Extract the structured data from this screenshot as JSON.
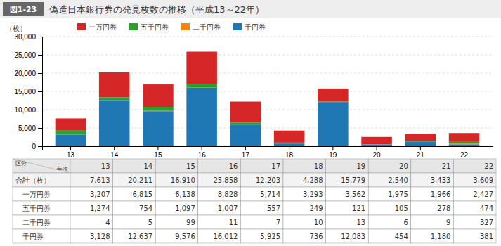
{
  "chart_data": {
    "type": "bar",
    "stacked": true,
    "title": "偽造日本銀行券の発見枚数の推移（平成13～22年）",
    "annotations": [
      "図1-23"
    ],
    "y_label": "（枚）",
    "categories": [
      "13",
      "14",
      "15",
      "16",
      "17",
      "18",
      "19",
      "20",
      "21",
      "22"
    ],
    "series": [
      {
        "name": "千円券",
        "values": [
          3128,
          12637,
          9576,
          16012,
          5925,
          736,
          12083,
          454,
          1180,
          381
        ],
        "value_labels": [
          "3,128",
          "12,637",
          "9,576",
          "16,012",
          "5,925",
          "736",
          "12,083",
          "454",
          "1,180",
          "381"
        ]
      },
      {
        "name": "二千円券",
        "values": [
          4,
          5,
          99,
          11,
          7,
          10,
          13,
          6,
          9,
          327
        ],
        "value_labels": [
          "4",
          "5",
          "99",
          "11",
          "7",
          "10",
          "13",
          "6",
          "9",
          "327"
        ]
      },
      {
        "name": "五千円券",
        "values": [
          1274,
          754,
          1097,
          1007,
          557,
          249,
          121,
          105,
          278,
          474
        ],
        "value_labels": [
          "1,274",
          "754",
          "1,097",
          "1,007",
          "557",
          "249",
          "121",
          "105",
          "278",
          "474"
        ]
      },
      {
        "name": "一万円券",
        "values": [
          3207,
          6815,
          6138,
          8828,
          5714,
          3293,
          3562,
          1975,
          1966,
          2427
        ],
        "value_labels": [
          "3,207",
          "6,815",
          "6,138",
          "8,828",
          "5,714",
          "3,293",
          "3,562",
          "1,975",
          "1,966",
          "2,427"
        ]
      }
    ],
    "ylim": [
      0,
      30000
    ],
    "yticks": [
      0,
      {
        "value": 5000,
        "label": "5,000"
      },
      {
        "value": 10000,
        "label": "10,000"
      },
      {
        "value": 15000,
        "label": "15,000"
      },
      {
        "value": 20000,
        "label": "20,000"
      },
      {
        "value": 25000,
        "label": "25,000"
      },
      {
        "value": 30000,
        "label": "30,000"
      }
    ],
    "grid": true,
    "legend": "top",
    "table": {
      "corner_labels": [
        "区分",
        "年次"
      ],
      "total_label": "合計（枚）",
      "totals": [
        7613,
        20211,
        16910,
        25858,
        12203,
        4288,
        15779,
        2540,
        3433,
        3609
      ],
      "total_labels": [
        "7,613",
        "20,211",
        "16,910",
        "25,858",
        "12,203",
        "4,288",
        "15,779",
        "2,540",
        "3,433",
        "3,609"
      ]
    }
  }
}
